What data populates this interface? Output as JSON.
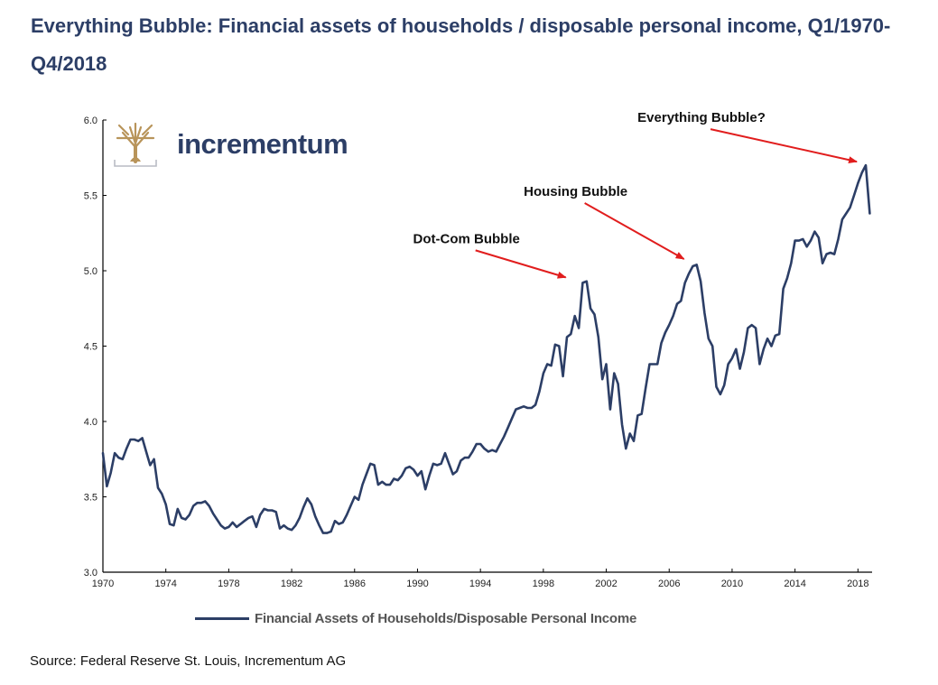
{
  "title": "Everything Bubble: Financial assets of households / disposable personal income, Q1/1970-Q4/2018",
  "source": "Source: Federal Reserve St. Louis, Incrementum AG",
  "logo": {
    "text": "incrementum",
    "icon": "tree-logo-icon"
  },
  "colors": {
    "line": "#2c3e66",
    "arrow": "#e11d1d",
    "title": "#2c3e66",
    "logo_gold": "#b8945a"
  },
  "chart_data": {
    "type": "line",
    "title": "Everything Bubble: Financial assets of households / disposable personal income, Q1/1970-Q4/2018",
    "xlabel": "",
    "ylabel": "",
    "xlim": [
      1970,
      2018.9
    ],
    "ylim": [
      3.0,
      6.0
    ],
    "x_ticks": [
      "1970",
      "1974",
      "1978",
      "1982",
      "1986",
      "1990",
      "1994",
      "1998",
      "2002",
      "2006",
      "2010",
      "2014",
      "2018"
    ],
    "y_ticks": [
      "3.0",
      "3.5",
      "4.0",
      "4.5",
      "5.0",
      "5.5",
      "6.0"
    ],
    "grid": false,
    "legend": "bottom",
    "series": [
      {
        "name": "Financial Assets of Households/Disposable Personal Income",
        "x": [
          1970.0,
          1970.25,
          1970.5,
          1970.75,
          1971.0,
          1971.25,
          1971.5,
          1971.75,
          1972.0,
          1972.25,
          1972.5,
          1972.75,
          1973.0,
          1973.25,
          1973.5,
          1973.75,
          1974.0,
          1974.25,
          1974.5,
          1974.75,
          1975.0,
          1975.25,
          1975.5,
          1975.75,
          1976.0,
          1976.25,
          1976.5,
          1976.75,
          1977.0,
          1977.25,
          1977.5,
          1977.75,
          1978.0,
          1978.25,
          1978.5,
          1978.75,
          1979.0,
          1979.25,
          1979.5,
          1979.75,
          1980.0,
          1980.25,
          1980.5,
          1980.75,
          1981.0,
          1981.25,
          1981.5,
          1981.75,
          1982.0,
          1982.25,
          1982.5,
          1982.75,
          1983.0,
          1983.25,
          1983.5,
          1983.75,
          1984.0,
          1984.25,
          1984.5,
          1984.75,
          1985.0,
          1985.25,
          1985.5,
          1985.75,
          1986.0,
          1986.25,
          1986.5,
          1986.75,
          1987.0,
          1987.25,
          1987.5,
          1987.75,
          1988.0,
          1988.25,
          1988.5,
          1988.75,
          1989.0,
          1989.25,
          1989.5,
          1989.75,
          1990.0,
          1990.25,
          1990.5,
          1990.75,
          1991.0,
          1991.25,
          1991.5,
          1991.75,
          1992.0,
          1992.25,
          1992.5,
          1992.75,
          1993.0,
          1993.25,
          1993.5,
          1993.75,
          1994.0,
          1994.25,
          1994.5,
          1994.75,
          1995.0,
          1995.25,
          1995.5,
          1995.75,
          1996.0,
          1996.25,
          1996.5,
          1996.75,
          1997.0,
          1997.25,
          1997.5,
          1997.75,
          1998.0,
          1998.25,
          1998.5,
          1998.75,
          1999.0,
          1999.25,
          1999.5,
          1999.75,
          2000.0,
          2000.25,
          2000.5,
          2000.75,
          2001.0,
          2001.25,
          2001.5,
          2001.75,
          2002.0,
          2002.25,
          2002.5,
          2002.75,
          2003.0,
          2003.25,
          2003.5,
          2003.75,
          2004.0,
          2004.25,
          2004.5,
          2004.75,
          2005.0,
          2005.25,
          2005.5,
          2005.75,
          2006.0,
          2006.25,
          2006.5,
          2006.75,
          2007.0,
          2007.25,
          2007.5,
          2007.75,
          2008.0,
          2008.25,
          2008.5,
          2008.75,
          2009.0,
          2009.25,
          2009.5,
          2009.75,
          2010.0,
          2010.25,
          2010.5,
          2010.75,
          2011.0,
          2011.25,
          2011.5,
          2011.75,
          2012.0,
          2012.25,
          2012.5,
          2012.75,
          2013.0,
          2013.25,
          2013.5,
          2013.75,
          2014.0,
          2014.25,
          2014.5,
          2014.75,
          2015.0,
          2015.25,
          2015.5,
          2015.75,
          2016.0,
          2016.25,
          2016.5,
          2016.75,
          2017.0,
          2017.25,
          2017.5,
          2017.75,
          2018.0,
          2018.25,
          2018.5,
          2018.75
        ],
        "values": [
          3.79,
          3.57,
          3.66,
          3.79,
          3.76,
          3.75,
          3.82,
          3.88,
          3.88,
          3.87,
          3.89,
          3.8,
          3.71,
          3.75,
          3.56,
          3.52,
          3.45,
          3.32,
          3.31,
          3.42,
          3.36,
          3.35,
          3.38,
          3.44,
          3.46,
          3.46,
          3.47,
          3.44,
          3.39,
          3.35,
          3.31,
          3.29,
          3.3,
          3.33,
          3.3,
          3.32,
          3.34,
          3.36,
          3.37,
          3.3,
          3.38,
          3.42,
          3.41,
          3.41,
          3.4,
          3.29,
          3.31,
          3.29,
          3.28,
          3.31,
          3.36,
          3.43,
          3.49,
          3.45,
          3.37,
          3.31,
          3.26,
          3.26,
          3.27,
          3.34,
          3.32,
          3.33,
          3.38,
          3.44,
          3.5,
          3.48,
          3.58,
          3.65,
          3.72,
          3.71,
          3.58,
          3.6,
          3.58,
          3.58,
          3.62,
          3.61,
          3.64,
          3.69,
          3.7,
          3.68,
          3.64,
          3.67,
          3.55,
          3.64,
          3.72,
          3.71,
          3.72,
          3.79,
          3.72,
          3.65,
          3.67,
          3.74,
          3.76,
          3.76,
          3.8,
          3.85,
          3.85,
          3.82,
          3.8,
          3.81,
          3.8,
          3.85,
          3.9,
          3.96,
          4.02,
          4.08,
          4.09,
          4.1,
          4.09,
          4.09,
          4.11,
          4.2,
          4.32,
          4.38,
          4.37,
          4.51,
          4.5,
          4.3,
          4.56,
          4.58,
          4.7,
          4.62,
          4.92,
          4.93,
          4.75,
          4.71,
          4.56,
          4.28,
          4.38,
          4.08,
          4.32,
          4.25,
          3.98,
          3.82,
          3.92,
          3.87,
          4.04,
          4.05,
          4.22,
          4.38,
          4.38,
          4.38,
          4.52,
          4.59,
          4.64,
          4.7,
          4.78,
          4.8,
          4.92,
          4.98,
          5.03,
          5.04,
          4.93,
          4.72,
          4.55,
          4.5,
          4.23,
          4.18,
          4.24,
          4.38,
          4.42,
          4.48,
          4.35,
          4.46,
          4.62,
          4.64,
          4.62,
          4.38,
          4.48,
          4.55,
          4.5,
          4.57,
          4.58,
          4.88,
          4.95,
          5.05,
          5.2,
          5.2,
          5.21,
          5.16,
          5.2,
          5.26,
          5.22,
          5.05,
          5.11,
          5.12,
          5.11,
          5.21,
          5.34,
          5.38,
          5.42,
          5.5,
          5.58,
          5.65,
          5.7,
          5.38
        ]
      }
    ],
    "annotations": [
      {
        "text": "Dot-Com Bubble",
        "x": 2000.0,
        "y": 4.92
      },
      {
        "text": "Housing Bubble",
        "x": 2007.4,
        "y": 5.03
      },
      {
        "text": "Everything Bubble?",
        "x": 2018.5,
        "y": 5.7
      }
    ]
  }
}
